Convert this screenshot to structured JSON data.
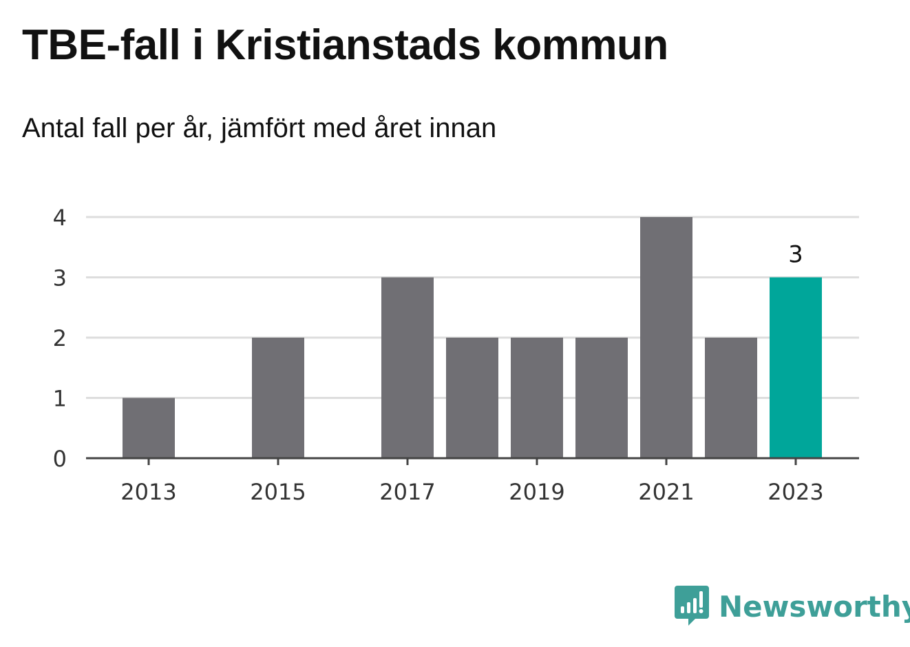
{
  "title": "TBE-fall i Kristianstads kommun",
  "subtitle": "Antal fall per år, jämfört med året innan",
  "brand": {
    "name": "Newsworthy",
    "icon": "newsworthy-logo-icon",
    "color": "#3e9f98"
  },
  "colors": {
    "bar": "#706f74",
    "highlight": "#00a69a",
    "grid": "#dddddd",
    "axis": "#444444"
  },
  "chart_data": {
    "type": "bar",
    "categories": [
      "2013",
      "2014",
      "2015",
      "2016",
      "2017",
      "2018",
      "2019",
      "2020",
      "2021",
      "2022",
      "2023"
    ],
    "values": [
      1,
      0,
      2,
      0,
      3,
      2,
      2,
      2,
      4,
      2,
      3
    ],
    "x_tick_labels": [
      "2013",
      "2015",
      "2017",
      "2019",
      "2021",
      "2023"
    ],
    "y_ticks": [
      0,
      1,
      2,
      3,
      4
    ],
    "ylim": [
      0,
      4
    ],
    "highlight_category": "2023",
    "data_labels": [
      {
        "category": "2023",
        "text": "3"
      }
    ],
    "grid": true,
    "xlabel": "",
    "ylabel": ""
  }
}
